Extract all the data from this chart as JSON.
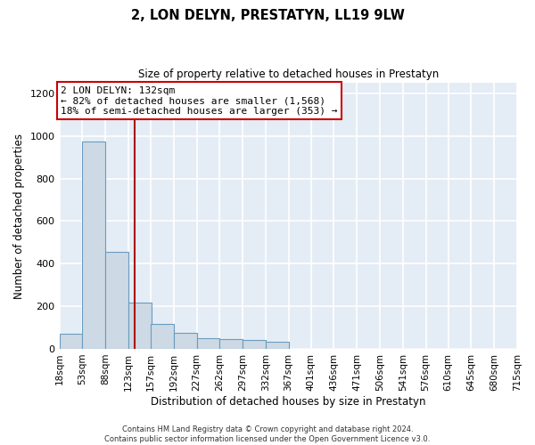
{
  "title": "2, LON DELYN, PRESTATYN, LL19 9LW",
  "subtitle": "Size of property relative to detached houses in Prestatyn",
  "xlabel": "Distribution of detached houses by size in Prestatyn",
  "ylabel": "Number of detached properties",
  "bar_color": "#cdd9e5",
  "bar_edge_color": "#6a9cbf",
  "background_color": "#e4edf5",
  "grid_color": "#ffffff",
  "annotation_text": "2 LON DELYN: 132sqm\n← 82% of detached houses are smaller (1,568)\n18% of semi-detached houses are larger (353) →",
  "annotation_box_color": "#ffffff",
  "annotation_box_edge_color": "#cc0000",
  "property_line_x": 132,
  "property_line_color": "#aa1111",
  "bin_edges": [
    18,
    53,
    88,
    123,
    157,
    192,
    227,
    262,
    297,
    332,
    367,
    401,
    436,
    471,
    506,
    541,
    576,
    610,
    645,
    680,
    715
  ],
  "bar_heights": [
    72,
    975,
    455,
    218,
    118,
    75,
    50,
    47,
    40,
    35,
    0,
    0,
    0,
    0,
    0,
    0,
    0,
    0,
    0,
    0
  ],
  "ylim": [
    0,
    1250
  ],
  "yticks": [
    0,
    200,
    400,
    600,
    800,
    1000,
    1200
  ],
  "footer_line1": "Contains HM Land Registry data © Crown copyright and database right 2024.",
  "footer_line2": "Contains public sector information licensed under the Open Government Licence v3.0."
}
